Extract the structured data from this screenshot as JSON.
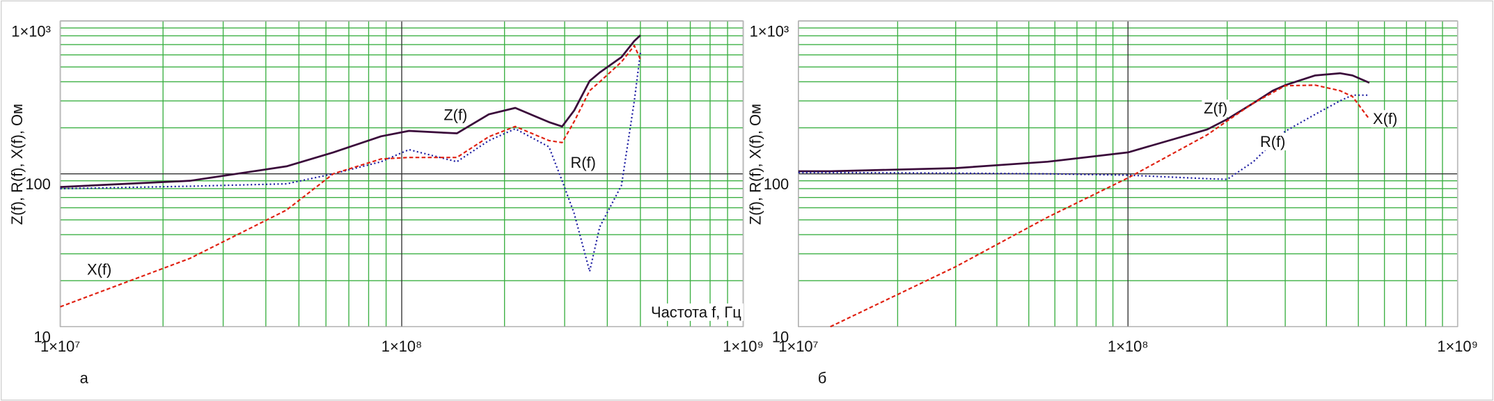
{
  "chart_data": [
    {
      "type": "line",
      "panel_label": "а",
      "ylabel": "Z(f), R(f), X(f), Ом",
      "xlabel": "Частота f, Гц",
      "annotations": [
        "Z(f)",
        "R(f)",
        "X(f)"
      ],
      "xscale": "log",
      "yscale": "log",
      "grid": true,
      "minor_grid": true,
      "grid_color": "#3cb043",
      "xlim": [
        10000000,
        1000000000
      ],
      "ylim": [
        10,
        1000
      ],
      "xticks": [
        {
          "value": 10000000,
          "label": "1×10⁷"
        },
        {
          "value": 100000000,
          "label": "1×10⁸"
        },
        {
          "value": 1000000000,
          "label": "1×10⁹"
        }
      ],
      "yticks": [
        10,
        100,
        {
          "value": 1000,
          "label": "1×10³"
        }
      ],
      "x": [
        10000000,
        24000000,
        46000000,
        63000000,
        87000000,
        105000000,
        145000000,
        180000000,
        215000000,
        270000000,
        295000000,
        320000000,
        355000000,
        380000000,
        440000000,
        480000000,
        500000000
      ],
      "series": [
        {
          "name": "Z(f)",
          "color": "#3a0a3a",
          "style": "solid",
          "values": [
            82,
            90,
            112,
            138,
            176,
            191,
            184,
            245,
            270,
            218,
            204,
            260,
            405,
            460,
            580,
            740,
            806
          ]
        },
        {
          "name": "R(f)",
          "color": "#1a1aa0",
          "style": "dotted",
          "values": [
            80,
            83,
            86,
            100,
            120,
            144,
            120,
            165,
            197,
            150,
            90,
            55,
            23,
            45,
            84,
            300,
            622
          ]
        },
        {
          "name": "X(f)",
          "color": "#e02010",
          "style": "dashed",
          "values": [
            13.5,
            28,
            58,
            100,
            125,
            128,
            128,
            175,
            204,
            165,
            160,
            220,
            350,
            400,
            540,
            690,
            560
          ]
        }
      ]
    },
    {
      "type": "line",
      "panel_label": "б",
      "ylabel": "Z(f), R(f), X(f), Ом",
      "annotations": [
        "Z(f)",
        "R(f)",
        "X(f)"
      ],
      "xscale": "log",
      "yscale": "log",
      "grid": true,
      "minor_grid": true,
      "grid_color": "#3cb043",
      "xlim": [
        10000000,
        1000000000
      ],
      "ylim": [
        10,
        1000
      ],
      "xticks": [
        {
          "value": 10000000,
          "label": "1×10⁷"
        },
        {
          "value": 100000000,
          "label": "1×10⁸"
        },
        {
          "value": 1000000000,
          "label": "1×10⁹"
        }
      ],
      "yticks": [
        10,
        100,
        {
          "value": 1000,
          "label": "1×10³"
        }
      ],
      "x": [
        10000000,
        12500000,
        30000000,
        57000000,
        100000000,
        174000000,
        200000000,
        240000000,
        275000000,
        300000000,
        370000000,
        440000000,
        480000000,
        540000000
      ],
      "series": [
        {
          "name": "Z(f)",
          "color": "#3a0a3a",
          "style": "solid",
          "values": [
            104,
            104,
            109,
            120,
            138,
            195,
            228,
            290,
            350,
            380,
            440,
            455,
            440,
            394
          ]
        },
        {
          "name": "R(f)",
          "color": "#1a1aa0",
          "style": "dotted",
          "values": [
            102,
            102,
            101,
            100,
            98,
            93,
            92,
            120,
            160,
            190,
            245,
            300,
            327,
            327
          ]
        },
        {
          "name": "X(f)",
          "color": "#e02010",
          "style": "dashed",
          "values": [
            null,
            10,
            24.7,
            52,
            94,
            180,
            222,
            290,
            340,
            377,
            380,
            350,
            320,
            228
          ]
        }
      ]
    }
  ]
}
